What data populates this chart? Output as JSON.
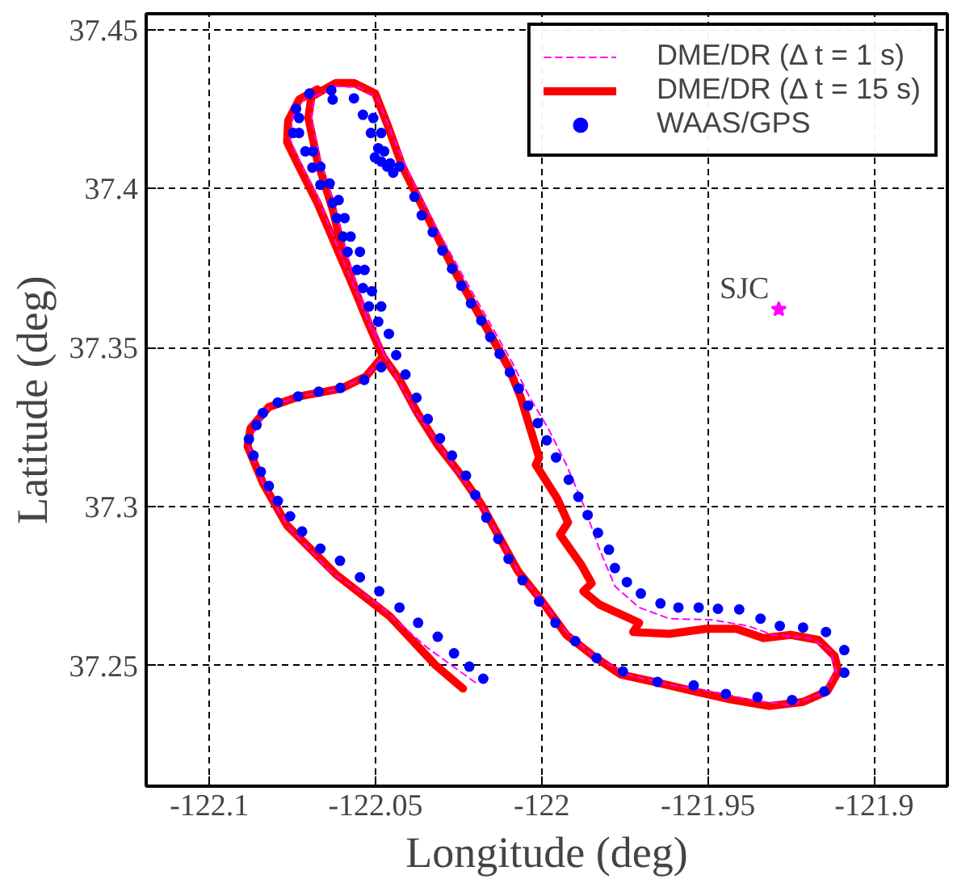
{
  "chart_data": {
    "type": "line",
    "xlabel": "Longitude (deg)",
    "ylabel": "Latitude (deg)",
    "xlim": [
      -122.119,
      -121.878
    ],
    "ylim": [
      37.212,
      37.455
    ],
    "xticks": [
      -122.1,
      -122.05,
      -122,
      -121.95,
      -121.9
    ],
    "yticks": [
      37.25,
      37.3,
      37.35,
      37.4,
      37.45
    ],
    "grid": true,
    "legend": "top right",
    "annotations": [
      {
        "text": "SJC",
        "x": -121.9287,
        "y": 37.362
      }
    ],
    "series": [
      {
        "name": "DME/DR (Δ t = 1 s)",
        "line_style": "dashed",
        "color": "#ff00ff",
        "x": [
          -122.02,
          -122.0346,
          -122.0492,
          -122.0638,
          -122.0766,
          -122.0839,
          -122.0885,
          -122.0821,
          -122.073,
          -122.0602,
          -122.0529,
          -122.0474,
          -122.0502,
          -122.0547,
          -122.0584,
          -122.062,
          -122.0666,
          -122.0693,
          -122.0684,
          -122.062,
          -122.0547,
          -122.0492,
          -122.0456,
          -122.0401,
          -122.0328,
          -122.0237,
          -122.0164,
          -122.0091,
          -122.0036,
          -121.9981,
          -121.9926,
          -121.9872,
          -121.9826,
          -121.978,
          -121.9707,
          -121.9616,
          -121.9488,
          -121.9379,
          -121.9305,
          -121.9196,
          -121.9132,
          -121.9114,
          -121.915,
          -121.9251,
          -121.936,
          -121.947,
          -121.9616,
          -121.9744,
          -121.9844,
          -121.9926,
          -121.9999,
          -122.0072,
          -122.0127,
          -122.0182,
          -122.0255,
          -122.0319,
          -122.0383,
          -122.0438,
          -122.0474,
          -122.0511,
          -122.0547,
          -122.0593,
          -122.0638,
          -122.0675,
          -122.0721,
          -122.0757,
          -122.0748,
          -122.0712
        ],
        "values": [
          37.2446,
          37.2557,
          37.2691,
          37.2797,
          37.294,
          37.3074,
          37.3198,
          37.3313,
          37.3346,
          37.3371,
          37.3409,
          37.3476,
          37.3553,
          37.3667,
          37.3782,
          37.3935,
          37.4088,
          37.4222,
          37.4289,
          37.4322,
          37.4318,
          37.428,
          37.4184,
          37.405,
          37.3897,
          37.3725,
          37.3591,
          37.3457,
          37.3342,
          37.3246,
          37.3131,
          37.2998,
          37.2864,
          37.2749,
          37.2682,
          37.2647,
          37.2643,
          37.2624,
          37.2596,
          37.2586,
          37.2548,
          37.2481,
          37.2414,
          37.2375,
          37.2389,
          37.2414,
          37.2439,
          37.2471,
          37.2529,
          37.2605,
          37.2701,
          37.2797,
          37.2902,
          37.3007,
          37.3112,
          37.3208,
          37.3304,
          37.3409,
          37.3476,
          37.3553,
          37.3648,
          37.3763,
          37.3878,
          37.3974,
          37.4069,
          37.4155,
          37.4232,
          37.4284
        ]
      },
      {
        "name": "DME/DR (Δ t = 15 s)",
        "line_style": "solid",
        "color": "#ff0000",
        "x": [
          -122.0237,
          -122.0319,
          -122.0456,
          -122.062,
          -122.0766,
          -122.0839,
          -122.0885,
          -122.0876,
          -122.0821,
          -122.073,
          -122.0602,
          -122.0529,
          -122.0478,
          -122.0511,
          -122.0556,
          -122.0593,
          -122.0629,
          -122.0675,
          -122.0702,
          -122.0693,
          -122.062,
          -122.0565,
          -122.0501,
          -122.0465,
          -122.0419,
          -122.0346,
          -122.0264,
          -122.0182,
          -122.01,
          -122.0063,
          -122.0008,
          -122.0018,
          -121.9954,
          -121.9921,
          -121.9945,
          -121.9881,
          -121.985,
          -121.9875,
          -121.9826,
          -121.9707,
          -121.9725,
          -121.9616,
          -121.9506,
          -121.9415,
          -121.9333,
          -121.9251,
          -121.9168,
          -121.9119,
          -121.9108,
          -121.9141,
          -121.9214,
          -121.9315,
          -121.9433,
          -121.9543,
          -121.9671,
          -121.9762,
          -121.9844,
          -121.9926,
          -121.9999,
          -122.0072,
          -122.0117,
          -122.0182,
          -122.0246,
          -122.031,
          -122.0374,
          -122.0428,
          -122.0478,
          -122.052,
          -122.0565,
          -122.062,
          -122.0675,
          -122.073,
          -122.0766,
          -122.0763,
          -122.073,
          -122.0675
        ],
        "values": [
          37.2427,
          37.25,
          37.2653,
          37.2787,
          37.294,
          37.3074,
          37.3189,
          37.3246,
          37.3313,
          37.3346,
          37.3371,
          37.3409,
          37.3472,
          37.3553,
          37.3667,
          37.3782,
          37.3935,
          37.4088,
          37.4222,
          37.4289,
          37.4332,
          37.4332,
          37.4299,
          37.4203,
          37.4069,
          37.3916,
          37.3744,
          37.3591,
          37.3438,
          37.3342,
          37.3154,
          37.3131,
          37.3026,
          37.295,
          37.2911,
          37.2816,
          37.2758,
          37.2733,
          37.2691,
          37.2634,
          37.2605,
          37.2599,
          37.2615,
          37.2615,
          37.2586,
          37.2596,
          37.258,
          37.2529,
          37.2481,
          37.2419,
          37.2385,
          37.2372,
          37.2393,
          37.2419,
          37.245,
          37.2471,
          37.2529,
          37.2596,
          37.2701,
          37.2797,
          37.2883,
          37.3007,
          37.3103,
          37.3189,
          37.3294,
          37.3399,
          37.3472,
          37.3572,
          37.3687,
          37.3821,
          37.3955,
          37.4069,
          37.4146,
          37.4213,
          37.428,
          37.4312
        ]
      },
      {
        "name": "WAAS/GPS",
        "type": "scatter",
        "marker": "circle",
        "color": "#0000ff",
        "x": [
          -122.0176,
          -122.0218,
          -122.0264,
          -122.0313,
          -122.0372,
          -122.0428,
          -122.0489,
          -122.0547,
          -122.0607,
          -122.0666,
          -122.0721,
          -122.0757,
          -122.0794,
          -122.0821,
          -122.0845,
          -122.0867,
          -122.0881,
          -122.0858,
          -122.0839,
          -122.0794,
          -122.0733,
          -122.0671,
          -122.0606,
          -122.0534,
          -122.0483,
          -122.0438,
          -122.046,
          -122.0492,
          -122.0483,
          -122.052,
          -122.0511,
          -122.0538,
          -122.0533,
          -122.0556,
          -122.0547,
          -122.0584,
          -122.0575,
          -122.0598,
          -122.0593,
          -122.0617,
          -122.0611,
          -122.0629,
          -122.0638,
          -122.0666,
          -122.0666,
          -122.069,
          -122.0688,
          -122.0711,
          -122.073,
          -122.0748,
          -122.0739,
          -122.073,
          -122.0699,
          -122.0633,
          -122.0629,
          -122.0565,
          -122.0538,
          -122.0507,
          -122.0514,
          -122.0483,
          -122.0492,
          -122.0474,
          -122.0502,
          -122.0483,
          -122.0465,
          -122.0447,
          -122.0456,
          -122.0428,
          -122.0383,
          -122.0361,
          -122.0328,
          -122.0299,
          -122.027,
          -122.0242,
          -122.0213,
          -122.0182,
          -122.0155,
          -122.0127,
          -122.0096,
          -122.0069,
          -122.0041,
          -122.0012,
          -121.9985,
          -121.9957,
          -121.9919,
          -121.989,
          -121.9862,
          -121.9831,
          -121.9798,
          -121.978,
          -121.9744,
          -121.9702,
          -121.9643,
          -121.9589,
          -121.9528,
          -121.947,
          -121.9406,
          -121.9342,
          -121.9284,
          -121.9214,
          -121.9145,
          -121.909,
          -121.909,
          -121.915,
          -121.9247,
          -121.9351,
          -121.9446,
          -121.9543,
          -121.9652,
          -121.9756,
          -121.9835,
          -121.9899,
          -121.9959,
          -122.0008,
          -122.0058,
          -122.01,
          -122.0131,
          -122.0167,
          -122.02,
          -122.0228,
          -122.027,
          -122.0306,
          -122.0343,
          -122.0377,
          -122.041
        ],
        "values": [
          37.2458,
          37.2496,
          37.2538,
          37.259,
          37.2634,
          37.2682,
          37.2733,
          37.2777,
          37.2829,
          37.2867,
          37.2921,
          37.2969,
          37.3017,
          37.3064,
          37.3109,
          37.316,
          37.3212,
          37.3256,
          37.3294,
          37.3327,
          37.3346,
          37.3361,
          37.3373,
          37.3398,
          37.3438,
          37.3476,
          37.3543,
          37.3581,
          37.3629,
          37.3629,
          37.3677,
          37.3687,
          37.3744,
          37.3744,
          37.3801,
          37.3801,
          37.3849,
          37.3849,
          37.3907,
          37.3907,
          37.3964,
          37.3955,
          37.4016,
          37.4012,
          37.4069,
          37.4066,
          37.4117,
          37.4117,
          37.4175,
          37.4175,
          37.4251,
          37.4222,
          37.4299,
          37.4309,
          37.428,
          37.4284,
          37.4232,
          37.4222,
          37.4175,
          37.4175,
          37.4127,
          37.4117,
          37.4098,
          37.4085,
          37.4069,
          37.405,
          37.4079,
          37.4069,
          37.3974,
          37.3916,
          37.3863,
          37.3805,
          37.3748,
          37.3694,
          37.3639,
          37.3585,
          37.3533,
          37.348,
          37.3422,
          37.3371,
          37.3317,
          37.3262,
          37.3208,
          37.3154,
          37.3084,
          37.303,
          37.2973,
          37.2917,
          37.2864,
          37.2806,
          37.2762,
          37.2726,
          37.2695,
          37.2682,
          37.2682,
          37.2678,
          37.2676,
          37.2647,
          37.2624,
          37.2619,
          37.2605,
          37.2548,
          37.2477,
          37.2418,
          37.2391,
          37.24,
          37.241,
          37.2437,
          37.2448,
          37.2481,
          37.2523,
          37.2576,
          37.2634,
          37.2701,
          37.2768,
          37.2835,
          37.2898,
          37.2965,
          37.3036,
          37.3097,
          37.316,
          37.3214,
          37.3275,
          37.3342,
          37.3415
        ]
      },
      {
        "type": "scatter",
        "marker": "star",
        "color": "#ff00ff",
        "x": [
          -121.9287
        ],
        "values": [
          37.362
        ]
      }
    ]
  }
}
